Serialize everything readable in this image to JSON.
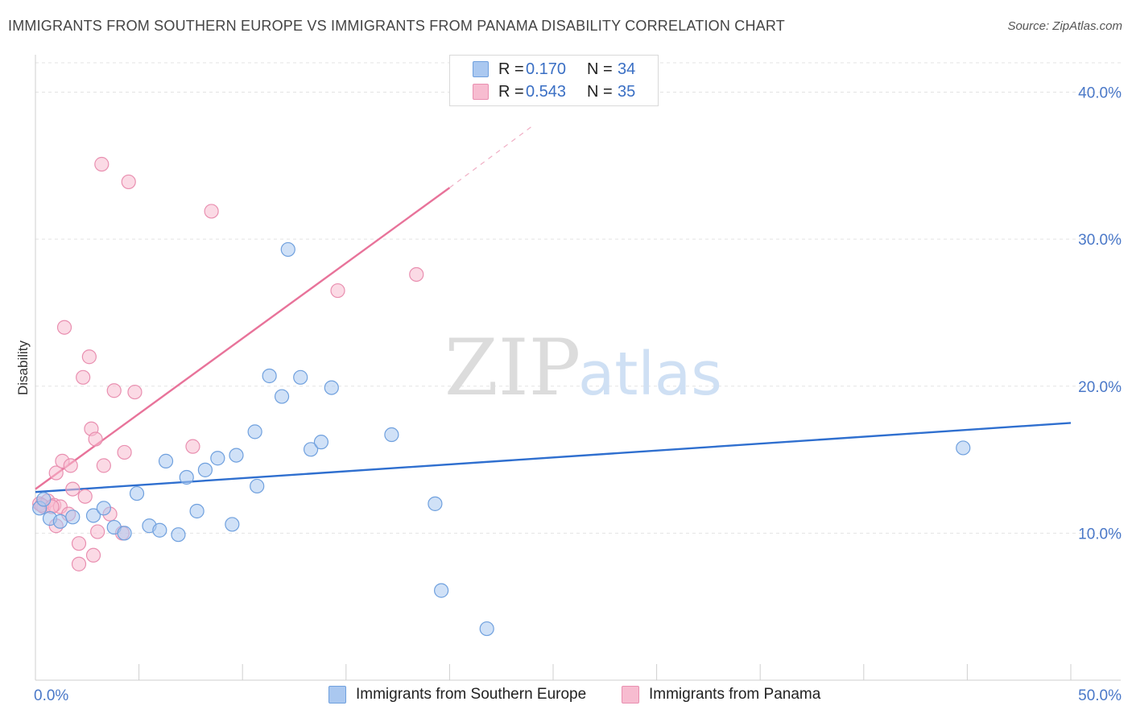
{
  "header": {
    "title": "IMMIGRANTS FROM SOUTHERN EUROPE VS IMMIGRANTS FROM PANAMA DISABILITY CORRELATION CHART",
    "source": "Source: ZipAtlas.com"
  },
  "watermark": {
    "zip": "ZIP",
    "atlas": "atlas"
  },
  "legend": {
    "rows": [
      {
        "r_label": "R =",
        "r_value": "0.170",
        "n_label": "N =",
        "n_value": "34",
        "color": "#aac8f0"
      },
      {
        "r_label": "R =",
        "r_value": "0.543",
        "n_label": "N =",
        "n_value": "35",
        "color": "#f7bcd0"
      }
    ]
  },
  "chart_data": {
    "type": "scatter",
    "xlabel": "",
    "ylabel": "Disability",
    "xlim": [
      0,
      50
    ],
    "ylim": [
      0,
      42
    ],
    "x_tick_labels": [
      {
        "value": 0,
        "label": "0.0%"
      },
      {
        "value": 50,
        "label": "50.0%"
      }
    ],
    "y_tick_labels": [
      {
        "value": 10,
        "label": "10.0%"
      },
      {
        "value": 20,
        "label": "20.0%"
      },
      {
        "value": 30,
        "label": "30.0%"
      },
      {
        "value": 40,
        "label": "40.0%"
      }
    ],
    "x_minor_ticks": [
      5,
      10,
      15,
      20,
      25,
      30,
      35,
      40,
      45
    ],
    "grid": "horizontal-dashed",
    "series": [
      {
        "name": "Immigrants from Southern Europe",
        "color": "#aac8f0",
        "edge": "#6fa0de",
        "line_color": "#2f6fcf",
        "trend": {
          "x0": 0,
          "y0": 12.8,
          "x1": 50,
          "y1": 17.5
        },
        "points": [
          [
            0.2,
            11.7
          ],
          [
            0.4,
            12.3
          ],
          [
            0.7,
            11.0
          ],
          [
            1.2,
            10.8
          ],
          [
            1.8,
            11.1
          ],
          [
            2.8,
            11.2
          ],
          [
            3.3,
            11.7
          ],
          [
            3.8,
            10.4
          ],
          [
            4.3,
            10.0
          ],
          [
            4.9,
            12.7
          ],
          [
            5.5,
            10.5
          ],
          [
            6.0,
            10.2
          ],
          [
            6.3,
            14.9
          ],
          [
            6.9,
            9.9
          ],
          [
            7.3,
            13.8
          ],
          [
            7.8,
            11.5
          ],
          [
            8.2,
            14.3
          ],
          [
            8.8,
            15.1
          ],
          [
            9.5,
            10.6
          ],
          [
            9.7,
            15.3
          ],
          [
            10.6,
            16.9
          ],
          [
            10.7,
            13.2
          ],
          [
            11.3,
            20.7
          ],
          [
            11.9,
            19.3
          ],
          [
            12.2,
            29.3
          ],
          [
            12.8,
            20.6
          ],
          [
            13.3,
            15.7
          ],
          [
            13.8,
            16.2
          ],
          [
            14.3,
            19.9
          ],
          [
            17.2,
            16.7
          ],
          [
            19.3,
            12.0
          ],
          [
            19.6,
            6.1
          ],
          [
            21.8,
            3.5
          ],
          [
            44.8,
            15.8
          ]
        ]
      },
      {
        "name": "Immigrants from Panama",
        "color": "#f7bcd0",
        "edge": "#e98fb0",
        "line_color": "#e8739a",
        "trend": {
          "x0": 0,
          "y0": 13.0,
          "x1": 20,
          "y1": 33.5
        },
        "trend_dashed": {
          "x0": 20,
          "y0": 33.5,
          "x1": 24,
          "y1": 37.7
        },
        "points": [
          [
            0.2,
            12.0
          ],
          [
            0.4,
            11.8
          ],
          [
            0.6,
            12.2
          ],
          [
            0.9,
            11.9
          ],
          [
            1.0,
            14.1
          ],
          [
            1.0,
            10.5
          ],
          [
            1.2,
            11.8
          ],
          [
            1.3,
            14.9
          ],
          [
            1.4,
            24.0
          ],
          [
            1.6,
            11.3
          ],
          [
            1.7,
            14.6
          ],
          [
            1.8,
            13.0
          ],
          [
            2.1,
            7.9
          ],
          [
            2.1,
            9.3
          ],
          [
            2.3,
            20.6
          ],
          [
            2.4,
            12.5
          ],
          [
            2.6,
            22.0
          ],
          [
            2.7,
            17.1
          ],
          [
            2.8,
            8.5
          ],
          [
            2.9,
            16.4
          ],
          [
            3.0,
            10.1
          ],
          [
            3.3,
            14.6
          ],
          [
            3.6,
            11.3
          ],
          [
            3.8,
            19.7
          ],
          [
            3.2,
            35.1
          ],
          [
            4.2,
            10.0
          ],
          [
            4.3,
            15.5
          ],
          [
            4.5,
            33.9
          ],
          [
            4.8,
            19.6
          ],
          [
            7.6,
            15.9
          ],
          [
            8.5,
            31.9
          ],
          [
            14.6,
            26.5
          ],
          [
            18.4,
            27.6
          ],
          [
            0.3,
            11.9
          ],
          [
            0.8,
            11.8
          ]
        ]
      }
    ]
  }
}
